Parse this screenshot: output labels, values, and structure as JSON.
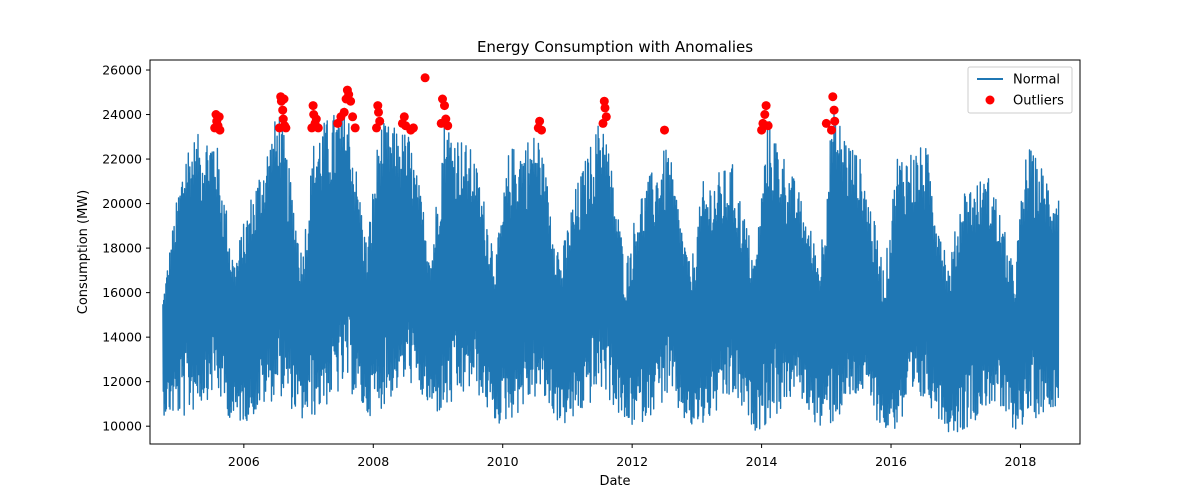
{
  "chart_data": {
    "type": "line",
    "title": "Energy Consumption with Anomalies",
    "xlabel": "Date",
    "ylabel": "Consumption (MW)",
    "xlim": [
      2004.55,
      2018.92
    ],
    "ylim": [
      9200,
      26450
    ],
    "xticks": [
      2006,
      2008,
      2010,
      2012,
      2014,
      2016,
      2018
    ],
    "yticks": [
      10000,
      12000,
      14000,
      16000,
      18000,
      20000,
      22000,
      24000,
      26000
    ],
    "grid": false,
    "legend_position": "top-right",
    "series": [
      {
        "name": "Normal",
        "style": "line",
        "color": "#1f77b4",
        "x_range": [
          2004.75,
          2018.59
        ],
        "envelope_x": [
          2004.75,
          2005.1,
          2005.55,
          2005.85,
          2006.1,
          2006.55,
          2006.9,
          2007.1,
          2007.6,
          2007.9,
          2008.1,
          2008.55,
          2008.9,
          2009.1,
          2009.55,
          2009.9,
          2010.1,
          2010.55,
          2010.9,
          2011.1,
          2011.55,
          2011.9,
          2012.1,
          2012.55,
          2012.9,
          2013.1,
          2013.55,
          2013.9,
          2014.1,
          2014.55,
          2014.9,
          2015.1,
          2015.55,
          2015.9,
          2016.1,
          2016.55,
          2016.9,
          2017.1,
          2017.55,
          2017.9,
          2018.1,
          2018.59
        ],
        "envelope_high": [
          16000,
          22900,
          23400,
          17500,
          20300,
          24400,
          17800,
          23400,
          24600,
          18200,
          23700,
          23200,
          18000,
          24000,
          22300,
          17800,
          22500,
          23300,
          17600,
          20500,
          24300,
          17300,
          20400,
          22700,
          17100,
          21000,
          21800,
          17500,
          24000,
          20800,
          17600,
          24400,
          21900,
          17000,
          22400,
          22600,
          17200,
          20800,
          21300,
          17000,
          22700,
          20600
        ],
        "envelope_low": [
          10500,
          10300,
          11500,
          10000,
          10300,
          11400,
          10200,
          10400,
          11700,
          10400,
          10700,
          12000,
          10600,
          10400,
          11700,
          10000,
          10200,
          11300,
          10000,
          10100,
          11600,
          9900,
          10000,
          11200,
          9800,
          9900,
          11200,
          9800,
          10000,
          11500,
          9800,
          10000,
          11400,
          9700,
          9800,
          11100,
          9700,
          9700,
          11000,
          9800,
          10100,
          11000
        ]
      },
      {
        "name": "Outliers",
        "style": "scatter",
        "color": "#ff0000",
        "x": [
          2005.55,
          2005.57,
          2005.58,
          2005.6,
          2005.62,
          2005.63,
          2006.55,
          2006.57,
          2006.58,
          2006.6,
          2006.61,
          2006.62,
          2006.63,
          2006.65,
          2007.05,
          2007.07,
          2007.08,
          2007.1,
          2007.12,
          2007.15,
          2007.45,
          2007.5,
          2007.55,
          2007.58,
          2007.6,
          2007.62,
          2007.65,
          2007.68,
          2007.72,
          2008.05,
          2008.07,
          2008.08,
          2008.1,
          2008.45,
          2008.48,
          2008.5,
          2008.58,
          2008.62,
          2008.8,
          2009.05,
          2009.07,
          2009.1,
          2009.12,
          2009.15,
          2010.55,
          2010.57,
          2010.6,
          2011.55,
          2011.57,
          2011.58,
          2011.6,
          2012.5,
          2014.0,
          2014.02,
          2014.05,
          2014.07,
          2014.1,
          2015.0,
          2015.08,
          2015.1,
          2015.12,
          2015.13
        ],
        "y": [
          23400,
          24000,
          23700,
          23500,
          23900,
          23300,
          23400,
          24800,
          24600,
          24200,
          23800,
          24700,
          23500,
          23400,
          23400,
          24400,
          24000,
          23600,
          23800,
          23400,
          23600,
          23900,
          24100,
          24700,
          25100,
          24900,
          24600,
          23900,
          23400,
          23400,
          24400,
          24100,
          23700,
          23600,
          23900,
          23500,
          23300,
          23400,
          25650,
          23600,
          24700,
          24400,
          23800,
          23500,
          23400,
          23700,
          23300,
          23600,
          24600,
          24300,
          23900,
          23300,
          23300,
          23600,
          24000,
          24400,
          23500,
          23600,
          23300,
          24800,
          24200,
          23700
        ]
      }
    ]
  }
}
